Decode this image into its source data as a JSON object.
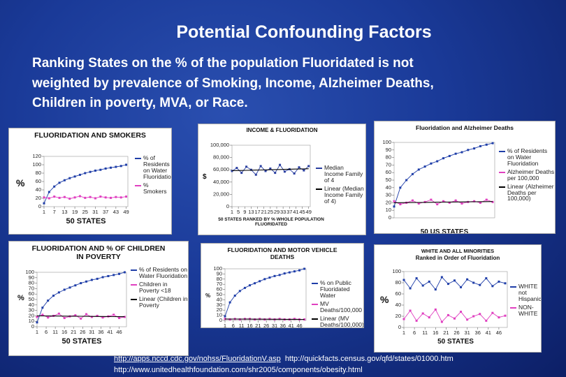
{
  "title": "Potential Confounding Factors",
  "subtitle_lines": [
    "Ranking States on the % of the population Fluoridated is not",
    "weighted by prevalence of Smoking, Income, Alzheimer Deaths,",
    "Children in poverty, MVA, or Race."
  ],
  "charts": [
    {
      "type": "line",
      "title": "FLUORIDATION AND SMOKERS",
      "x_label": "50 STATES",
      "y_label": "%",
      "x": [
        1,
        4,
        7,
        10,
        13,
        16,
        19,
        22,
        25,
        28,
        31,
        34,
        37,
        40,
        43,
        46,
        49
      ],
      "xlim": [
        1,
        50
      ],
      "xticks": [
        1,
        7,
        13,
        19,
        25,
        31,
        37,
        43,
        49
      ],
      "ylim": [
        0,
        120
      ],
      "yticks": [
        0,
        20,
        40,
        60,
        80,
        100,
        120
      ],
      "series": [
        {
          "name": "% of Residents on Water Fluoridation",
          "color": "#1f3ea8",
          "markers": true,
          "values": [
            8,
            35,
            48,
            57,
            63,
            68,
            72,
            76,
            80,
            83,
            86,
            88,
            91,
            93,
            95,
            97,
            100
          ]
        },
        {
          "name": "% Smokers",
          "color": "#e040c0",
          "markers": true,
          "values": [
            22,
            20,
            24,
            21,
            23,
            19,
            22,
            25,
            21,
            23,
            20,
            24,
            22,
            21,
            23,
            22,
            24
          ]
        }
      ]
    },
    {
      "type": "line",
      "title": "INCOME & FLUORIDATION",
      "x_label": "50 STATES RANKED BY % WHOLE POPULATION FLUORIDATED",
      "y_label": "$",
      "x": [
        1,
        4,
        7,
        10,
        13,
        16,
        19,
        22,
        25,
        28,
        31,
        34,
        37,
        40,
        43,
        46,
        49
      ],
      "xlim": [
        1,
        50
      ],
      "xticks": [
        1,
        5,
        9,
        13,
        17,
        21,
        25,
        29,
        33,
        37,
        41,
        45,
        49
      ],
      "ylim": [
        0,
        100000
      ],
      "yticks": [
        0,
        {
          "value": 20000,
          "label": "20,000"
        },
        {
          "value": 40000,
          "label": "40,000"
        },
        {
          "value": 60000,
          "label": "60,000"
        },
        {
          "value": 80000,
          "label": "80,000"
        },
        {
          "value": 100000,
          "label": "100,000"
        }
      ],
      "series": [
        {
          "name": "Median Income Family of 4",
          "color": "#2a3fa0",
          "markers": true,
          "values": [
            58000,
            63000,
            55000,
            65000,
            60000,
            52000,
            66000,
            58000,
            62000,
            55000,
            68000,
            57000,
            61000,
            54000,
            64000,
            59000,
            66000
          ]
        },
        {
          "name": "Linear (Median Income Family of 4)",
          "color": "#000000",
          "markers": false,
          "values": [
            58500,
            58700,
            58900,
            59100,
            59300,
            59500,
            59700,
            59900,
            60100,
            60300,
            60500,
            60700,
            60900,
            61100,
            61300,
            61500,
            61700
          ]
        }
      ]
    },
    {
      "type": "line",
      "title": "Fluoridation and Alzheimer Deaths",
      "x_label": "50 US STATES",
      "y_label": "",
      "x": [
        1,
        4,
        7,
        10,
        13,
        16,
        19,
        22,
        25,
        28,
        31,
        34,
        37,
        40,
        43,
        46,
        49
      ],
      "xlim": [
        1,
        50
      ],
      "xticks": [],
      "ylim": [
        0,
        100
      ],
      "yticks": [
        0,
        10,
        20,
        30,
        40,
        50,
        60,
        70,
        80,
        90,
        100
      ],
      "series": [
        {
          "name": "% of Residents on Water Fluoridation",
          "color": "#1f3ea8",
          "markers": true,
          "values": [
            15,
            40,
            50,
            58,
            64,
            68,
            72,
            75,
            79,
            82,
            85,
            87,
            90,
            92,
            95,
            97,
            99
          ]
        },
        {
          "name": "Alzheimer Deaths per 100,000",
          "color": "#e040c0",
          "markers": true,
          "values": [
            22,
            18,
            20,
            23,
            19,
            21,
            24,
            18,
            22,
            20,
            23,
            19,
            21,
            22,
            20,
            24,
            21
          ]
        },
        {
          "name": "Linear (Alzheimer Deaths per 100,000)",
          "color": "#000000",
          "markers": false,
          "values": [
            20,
            20.1,
            20.2,
            20.3,
            20.4,
            20.5,
            20.6,
            20.7,
            20.8,
            20.9,
            21,
            21.1,
            21.2,
            21.3,
            21.4,
            21.5,
            21.6
          ]
        }
      ]
    },
    {
      "type": "line",
      "title": "FLUORIDATION AND % OF CHILDREN IN POVERTY",
      "x_label": "50 STATES",
      "y_label": "%",
      "x": [
        1,
        4,
        7,
        10,
        13,
        16,
        19,
        22,
        25,
        28,
        31,
        34,
        37,
        40,
        43,
        46,
        49
      ],
      "xlim": [
        1,
        50
      ],
      "xticks": [
        1,
        6,
        11,
        16,
        21,
        26,
        31,
        36,
        41,
        46
      ],
      "ylim": [
        0,
        100
      ],
      "yticks": [
        0,
        10,
        20,
        30,
        40,
        50,
        60,
        70,
        80,
        90,
        100
      ],
      "series": [
        {
          "name": "% of Residents on Water Fluoridation",
          "color": "#1f3ea8",
          "markers": true,
          "values": [
            8,
            35,
            48,
            57,
            63,
            68,
            72,
            76,
            80,
            83,
            86,
            88,
            91,
            93,
            95,
            97,
            100
          ]
        },
        {
          "name": "Children in Poverty <18",
          "color": "#e040c0",
          "markers": true,
          "values": [
            18,
            22,
            17,
            20,
            24,
            16,
            19,
            21,
            15,
            23,
            18,
            20,
            17,
            19,
            22,
            16,
            18
          ]
        },
        {
          "name": "Linear (Children in Poverty",
          "color": "#000000",
          "markers": false,
          "values": [
            20,
            19.9,
            19.8,
            19.7,
            19.6,
            19.5,
            19.4,
            19.3,
            19.2,
            19.1,
            19,
            18.9,
            18.8,
            18.7,
            18.6,
            18.5,
            18.4
          ]
        }
      ]
    },
    {
      "type": "line",
      "title": "FLUORIDATION AND MOTOR VEHICLE DEATHS",
      "x_label": "",
      "y_label": "%",
      "x": [
        1,
        4,
        7,
        10,
        13,
        16,
        19,
        22,
        25,
        28,
        31,
        34,
        37,
        40,
        43,
        46,
        49
      ],
      "xlim": [
        1,
        50
      ],
      "xticks": [
        1,
        6,
        11,
        16,
        21,
        26,
        31,
        36,
        41,
        46
      ],
      "ylim": [
        0,
        100
      ],
      "yticks": [
        0,
        10,
        20,
        30,
        40,
        50,
        60,
        70,
        80,
        90,
        100
      ],
      "series": [
        {
          "name": "% on Public Fluoridated Water",
          "color": "#1f3ea8",
          "markers": true,
          "values": [
            8,
            35,
            48,
            57,
            63,
            68,
            72,
            76,
            80,
            83,
            86,
            88,
            91,
            93,
            95,
            97,
            100
          ]
        },
        {
          "name": "MV Deaths/100,000",
          "color": "#e040c0",
          "markers": true,
          "values": [
            3,
            2,
            3,
            2,
            3,
            3,
            2,
            3,
            2,
            3,
            2,
            3,
            2,
            2,
            3,
            2,
            2
          ]
        },
        {
          "name": "Linear (MV Deaths/100,000)",
          "color": "#000000",
          "markers": false,
          "values": [
            2.8,
            2.75,
            2.7,
            2.65,
            2.6,
            2.55,
            2.5,
            2.45,
            2.4,
            2.35,
            2.3,
            2.25,
            2.2,
            2.15,
            2.1,
            2.05,
            2.0
          ]
        }
      ]
    },
    {
      "type": "line",
      "title": "WHITE AND ALL MINORITIES",
      "subtitle": "Ranked in Order of Fluoridation",
      "x_label": "50 STATES",
      "y_label": "%",
      "x": [
        1,
        4,
        7,
        10,
        13,
        16,
        19,
        22,
        25,
        28,
        31,
        34,
        37,
        40,
        43,
        46,
        49
      ],
      "xlim": [
        1,
        50
      ],
      "xticks": [
        1,
        6,
        11,
        16,
        21,
        26,
        31,
        36,
        41,
        46
      ],
      "ylim": [
        0,
        100
      ],
      "yticks": [
        0,
        20,
        40,
        60,
        80,
        100
      ],
      "series": [
        {
          "name": "WHITE not Hispanic",
          "color": "#1f3ea8",
          "markers": true,
          "values": [
            85,
            70,
            88,
            75,
            82,
            68,
            90,
            78,
            84,
            72,
            86,
            80,
            76,
            88,
            74,
            82,
            79
          ]
        },
        {
          "name": "NON-WHITE",
          "color": "#e040c0",
          "markers": true,
          "values": [
            15,
            30,
            12,
            25,
            18,
            32,
            10,
            22,
            16,
            28,
            14,
            20,
            24,
            12,
            26,
            18,
            21
          ]
        }
      ]
    }
  ],
  "footer": {
    "links": [
      "http://apps.nccd.cdc.gov/nohss/FluoridationV.asp",
      "http://quickfacts.census.gov/qfd/states/01000.htm",
      "http://www.unitedhealthfoundation.com/shr2005/components/obesity.html"
    ]
  }
}
